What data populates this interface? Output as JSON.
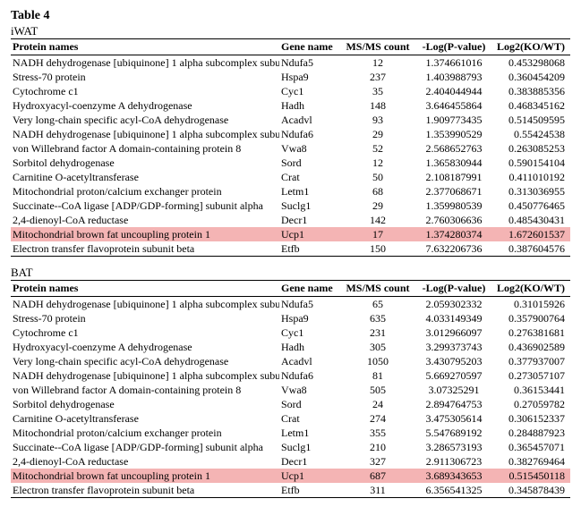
{
  "table_label": "Table 4",
  "sections": [
    {
      "subtitle": "iWAT",
      "headers": [
        "Protein names",
        "Gene name",
        "MS/MS count",
        "-Log(P-value)",
        "Log2(KO/WT)"
      ],
      "rows": [
        {
          "hl": false,
          "c": [
            "NADH dehydrogenase [ubiquinone] 1 alpha subcomplex subunit 5",
            "Ndufa5",
            "12",
            "1.374661016",
            "0.453298068"
          ]
        },
        {
          "hl": false,
          "c": [
            "Stress-70 protein",
            "Hspa9",
            "237",
            "1.403988793",
            "0.360454209"
          ]
        },
        {
          "hl": false,
          "c": [
            "Cytochrome c1",
            "Cyc1",
            "35",
            "2.404044944",
            "0.383885356"
          ]
        },
        {
          "hl": false,
          "c": [
            "Hydroxyacyl-coenzyme A dehydrogenase",
            "Hadh",
            "148",
            "3.646455864",
            "0.468345162"
          ]
        },
        {
          "hl": false,
          "c": [
            "Very long-chain specific acyl-CoA dehydrogenase",
            "Acadvl",
            "93",
            "1.909773435",
            "0.514509595"
          ]
        },
        {
          "hl": false,
          "c": [
            "NADH dehydrogenase [ubiquinone] 1 alpha subcomplex subunit 6",
            "Ndufa6",
            "29",
            "1.353990529",
            "0.55424538"
          ]
        },
        {
          "hl": false,
          "c": [
            "von Willebrand factor A domain-containing protein 8",
            "Vwa8",
            "52",
            "2.568652763",
            "0.263085253"
          ]
        },
        {
          "hl": false,
          "c": [
            "Sorbitol dehydrogenase",
            "Sord",
            "12",
            "1.365830944",
            "0.590154104"
          ]
        },
        {
          "hl": false,
          "c": [
            "Carnitine O-acetyltransferase",
            "Crat",
            "50",
            "2.108187991",
            "0.411010192"
          ]
        },
        {
          "hl": false,
          "c": [
            "Mitochondrial proton/calcium exchanger protein",
            "Letm1",
            "68",
            "2.377068671",
            "0.313036955"
          ]
        },
        {
          "hl": false,
          "c": [
            "Succinate--CoA ligase [ADP/GDP-forming] subunit alpha",
            "Suclg1",
            "29",
            "1.359980539",
            "0.450776465"
          ]
        },
        {
          "hl": false,
          "c": [
            "2,4-dienoyl-CoA reductase",
            "Decr1",
            "142",
            "2.760306636",
            "0.485430431"
          ]
        },
        {
          "hl": true,
          "c": [
            "Mitochondrial brown fat uncoupling protein 1",
            "Ucp1",
            "17",
            "1.374280374",
            "1.672601537"
          ]
        },
        {
          "hl": false,
          "c": [
            "Electron transfer flavoprotein subunit beta",
            "Etfb",
            "150",
            "7.632206736",
            "0.387604576"
          ]
        }
      ]
    },
    {
      "subtitle": "BAT",
      "headers": [
        "Protein names",
        "Gene name",
        "MS/MS count",
        "-Log(P-value)",
        "Log2(KO/WT)"
      ],
      "rows": [
        {
          "hl": false,
          "c": [
            "NADH dehydrogenase [ubiquinone] 1 alpha subcomplex subunit 5",
            "Ndufa5",
            "65",
            "2.059302332",
            "0.31015926"
          ]
        },
        {
          "hl": false,
          "c": [
            "Stress-70 protein",
            "Hspa9",
            "635",
            "4.033149349",
            "0.357900764"
          ]
        },
        {
          "hl": false,
          "c": [
            "Cytochrome c1",
            "Cyc1",
            "231",
            "3.012966097",
            "0.276381681"
          ]
        },
        {
          "hl": false,
          "c": [
            "Hydroxyacyl-coenzyme A dehydrogenase",
            "Hadh",
            "305",
            "3.299373743",
            "0.436902589"
          ]
        },
        {
          "hl": false,
          "c": [
            "Very long-chain specific acyl-CoA dehydrogenase",
            "Acadvl",
            "1050",
            "3.430795203",
            "0.377937007"
          ]
        },
        {
          "hl": false,
          "c": [
            "NADH dehydrogenase [ubiquinone] 1 alpha subcomplex subunit 6",
            "Ndufa6",
            "81",
            "5.669270597",
            "0.273057107"
          ]
        },
        {
          "hl": false,
          "c": [
            "von Willebrand factor A domain-containing protein 8",
            "Vwa8",
            "505",
            "3.07325291",
            "0.36153441"
          ]
        },
        {
          "hl": false,
          "c": [
            "Sorbitol dehydrogenase",
            "Sord",
            "24",
            "2.894764753",
            "0.27059782"
          ]
        },
        {
          "hl": false,
          "c": [
            "Carnitine O-acetyltransferase",
            "Crat",
            "274",
            "3.475305614",
            "0.306152337"
          ]
        },
        {
          "hl": false,
          "c": [
            "Mitochondrial proton/calcium exchanger protein",
            "Letm1",
            "355",
            "5.547689192",
            "0.284887923"
          ]
        },
        {
          "hl": false,
          "c": [
            "Succinate--CoA ligase [ADP/GDP-forming] subunit alpha",
            "Suclg1",
            "210",
            "3.286573193",
            "0.365457071"
          ]
        },
        {
          "hl": false,
          "c": [
            "2,4-dienoyl-CoA reductase",
            "Decr1",
            "327",
            "2.911306723",
            "0.382769464"
          ]
        },
        {
          "hl": true,
          "c": [
            "Mitochondrial brown fat uncoupling protein 1",
            "Ucp1",
            "687",
            "3.689343653",
            "0.515450118"
          ]
        },
        {
          "hl": false,
          "c": [
            "Electron transfer flavoprotein subunit beta",
            "Etfb",
            "311",
            "6.356541325",
            "0.345878439"
          ]
        }
      ]
    }
  ],
  "highlight_color": "#f4b4b4"
}
